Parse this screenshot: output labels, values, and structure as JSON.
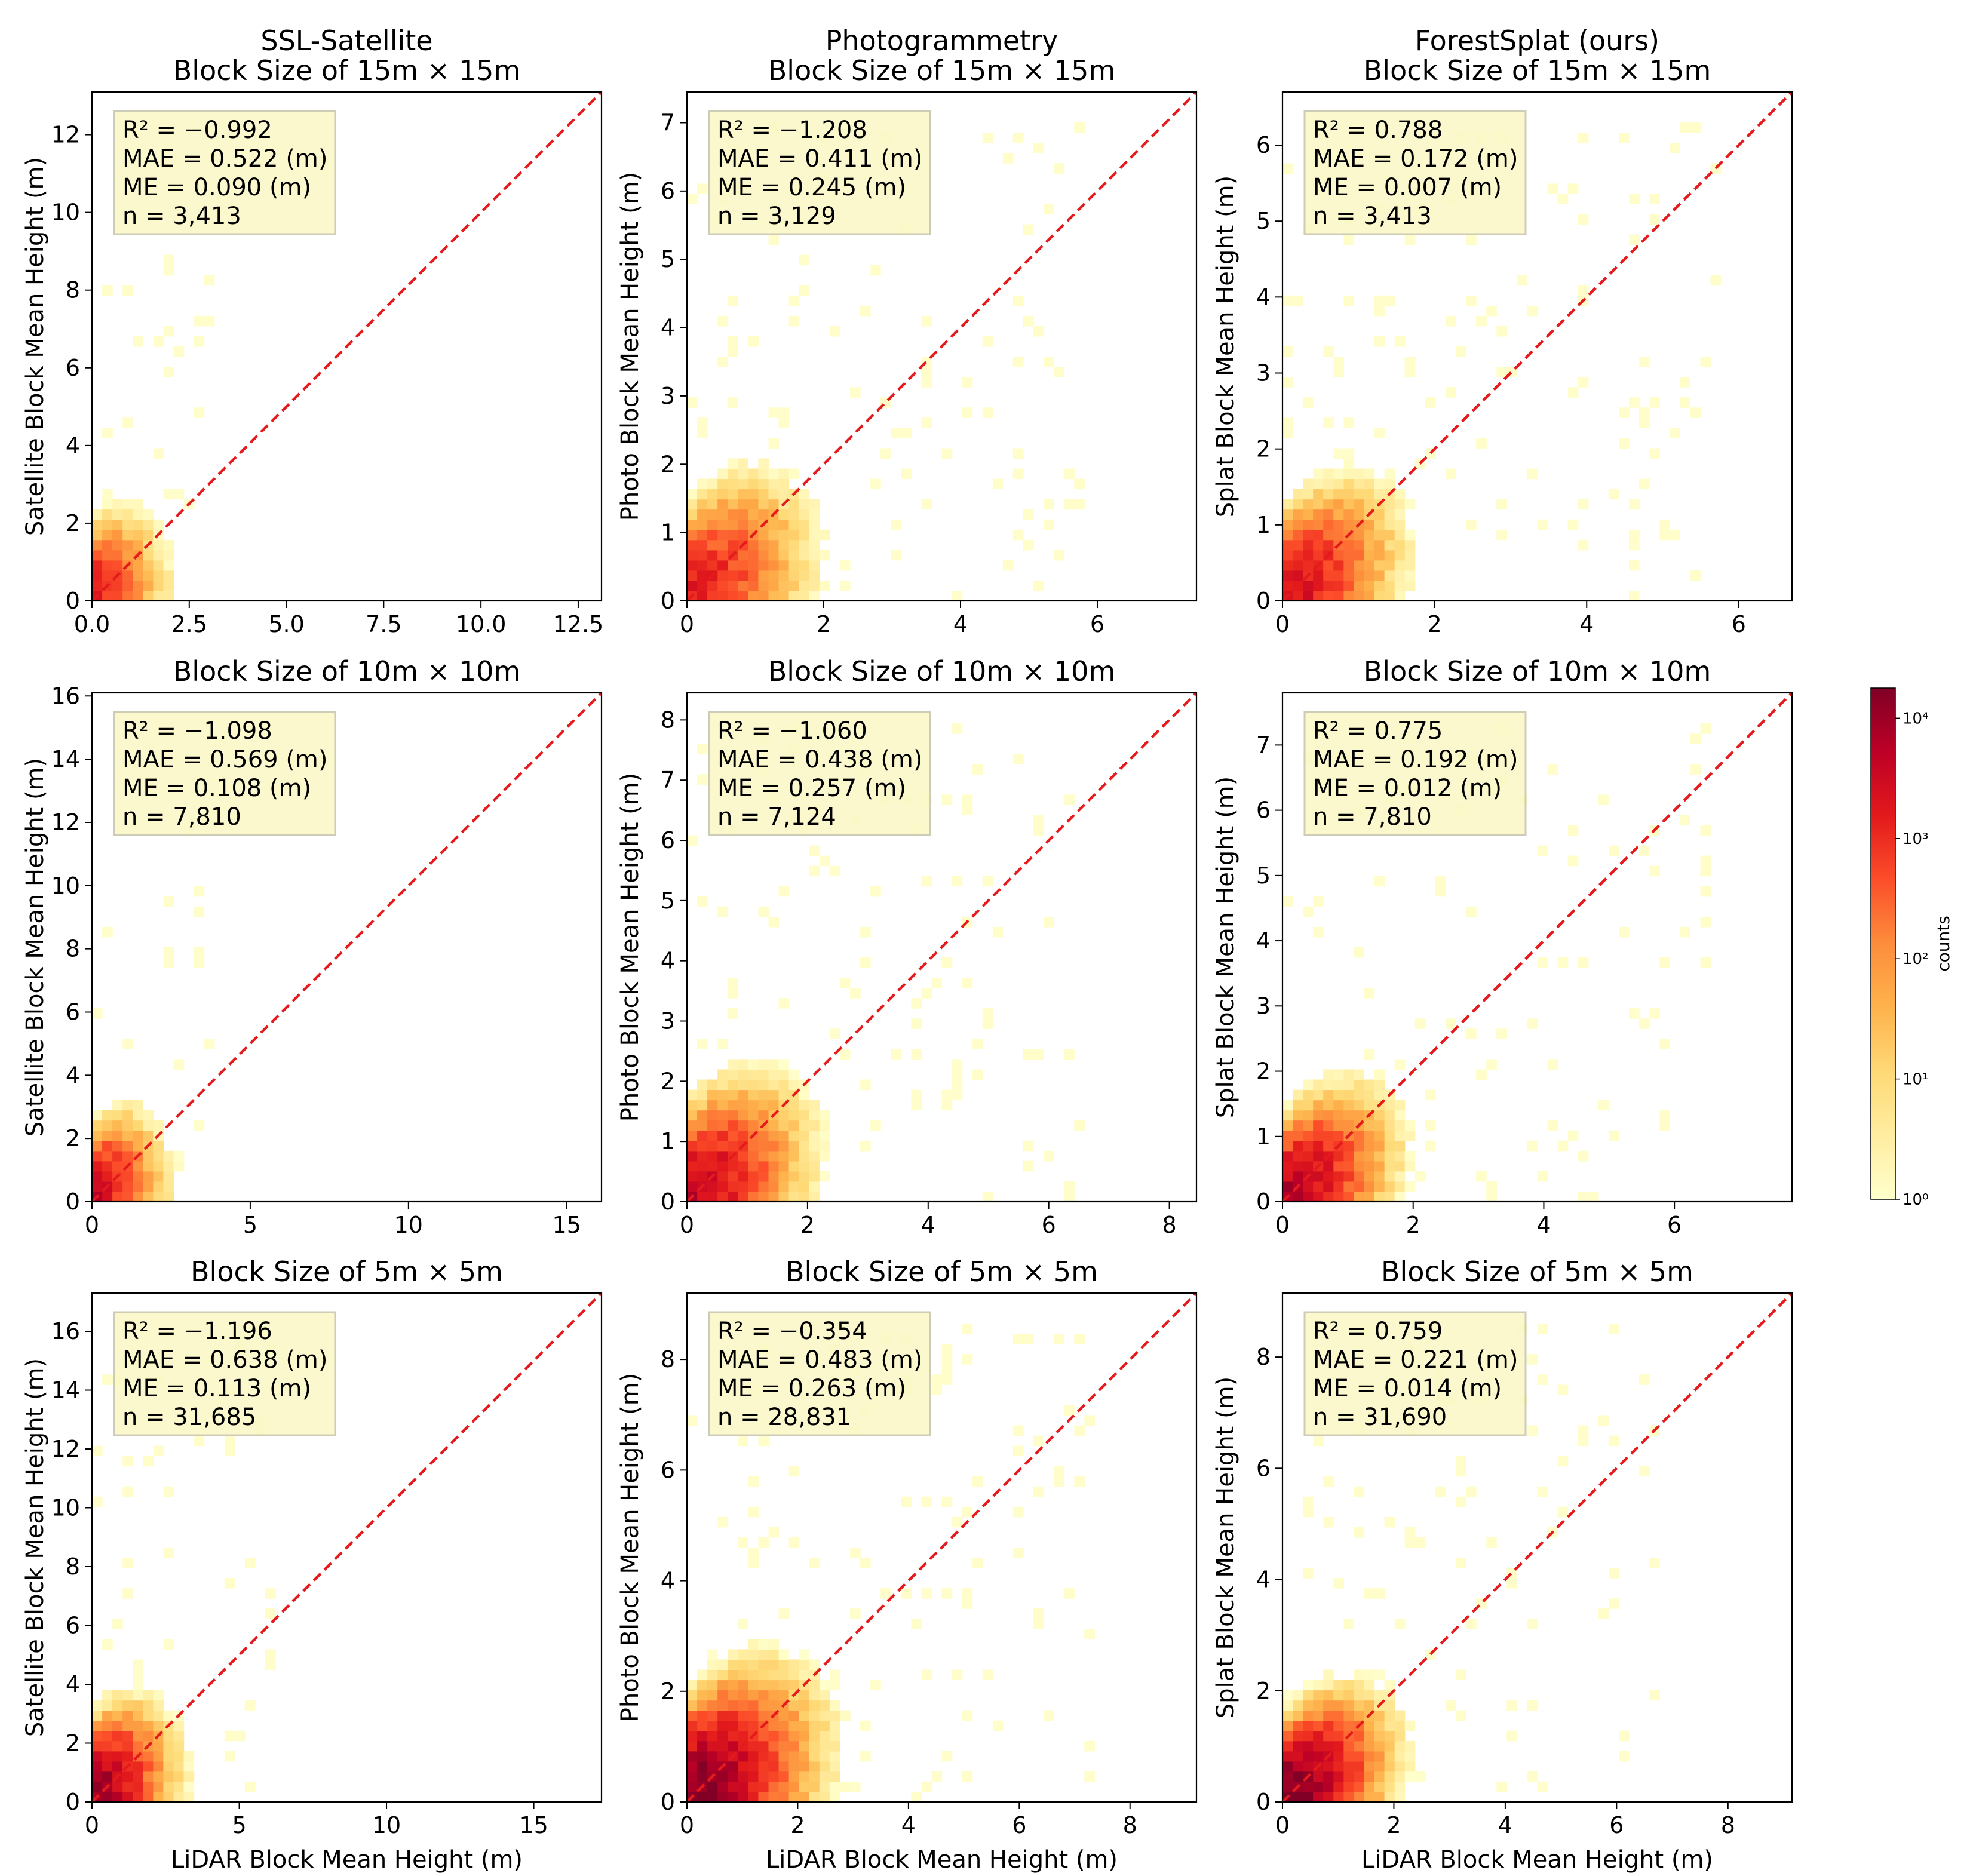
{
  "figure": {
    "colorbar": {
      "label": "counts",
      "ticks": [
        "10⁰",
        "10¹",
        "10²",
        "10³",
        "10⁴"
      ],
      "scale": "log",
      "colors": [
        "#ffffcc",
        "#ffeda0",
        "#fed976",
        "#feb24c",
        "#fd8d3c",
        "#fc4e2a",
        "#e31a1c",
        "#bd0026",
        "#800026"
      ]
    },
    "diagonal_color": "#e41a1c",
    "stats_box_color": "#fbf8c8"
  },
  "chart_data": [
    {
      "type": "heatmap",
      "method": "SSL-Satellite",
      "title": "SSL-Satellite\nBlock Size of 15m × 15m",
      "ylabel": "Satellite Block Mean Height (m)",
      "xlabel": "",
      "xlim": [
        0,
        13.1
      ],
      "ylim": [
        0,
        13.1
      ],
      "xticks": [
        0,
        2.5,
        5,
        7.5,
        10,
        12.5
      ],
      "xtick_labels": [
        "0.0",
        "2.5",
        "5.0",
        "7.5",
        "10.0",
        "12.5"
      ],
      "yticks": [
        0,
        2,
        4,
        6,
        8,
        10,
        12
      ],
      "ytick_labels": [
        "0",
        "2",
        "4",
        "6",
        "8",
        "10",
        "12"
      ],
      "stats": [
        "R² = −0.992",
        "MAE = 0.522 (m)",
        "ME = 0.090 (m)",
        "n = 3,413"
      ],
      "density": {
        "x_center": 1.0,
        "y_center": 1.5,
        "x_spread": 0.8,
        "y_spread": 2.2,
        "x_max": 3.4,
        "y_max": 9.5,
        "slope": 1.6,
        "peak_log_count": 3.3
      }
    },
    {
      "type": "heatmap",
      "method": "Photogrammetry",
      "title": "Photogrammetry\nBlock Size of 15m × 15m",
      "ylabel": "Photo Block Mean Height (m)",
      "xlabel": "",
      "xlim": [
        0,
        7.45
      ],
      "ylim": [
        0,
        7.45
      ],
      "xticks": [
        0,
        2,
        4,
        6
      ],
      "xtick_labels": [
        "0",
        "2",
        "4",
        "6"
      ],
      "yticks": [
        0,
        1,
        2,
        3,
        4,
        5,
        6,
        7
      ],
      "ytick_labels": [
        "0",
        "1",
        "2",
        "3",
        "4",
        "5",
        "6",
        "7"
      ],
      "stats": [
        "R² = −1.208",
        "MAE = 0.411 (m)",
        "ME = 0.245 (m)",
        "n = 3,129"
      ],
      "density": {
        "x_center": 1.3,
        "y_center": 1.6,
        "x_spread": 1.2,
        "y_spread": 1.4,
        "x_max": 6.5,
        "y_max": 7.4,
        "slope": 1.0,
        "peak_log_count": 3.3
      }
    },
    {
      "type": "heatmap",
      "method": "ForestSplat (ours)",
      "title": "ForestSplat (ours)\nBlock Size of 15m × 15m",
      "ylabel": "Splat Block Mean Height (m)",
      "xlabel": "",
      "xlim": [
        0,
        6.7
      ],
      "ylim": [
        0,
        6.7
      ],
      "xticks": [
        0,
        2,
        4,
        6
      ],
      "xtick_labels": [
        "0",
        "2",
        "4",
        "6"
      ],
      "yticks": [
        0,
        1,
        2,
        3,
        4,
        5,
        6
      ],
      "ytick_labels": [
        "0",
        "1",
        "2",
        "3",
        "4",
        "5",
        "6"
      ],
      "stats": [
        "R² = 0.788",
        "MAE = 0.172 (m)",
        "ME = 0.007 (m)",
        "n = 3,413"
      ],
      "density": {
        "x_center": 1.1,
        "y_center": 1.1,
        "x_spread": 1.1,
        "y_spread": 1.1,
        "x_max": 6.4,
        "y_max": 6.6,
        "slope": 1.0,
        "peak_log_count": 3.5
      }
    },
    {
      "type": "heatmap",
      "method": "SSL-Satellite",
      "title": "Block Size of 10m × 10m",
      "ylabel": "Satellite Block Mean Height (m)",
      "xlabel": "",
      "xlim": [
        0,
        16.1
      ],
      "ylim": [
        0,
        16.1
      ],
      "xticks": [
        0,
        5,
        10,
        15
      ],
      "xtick_labels": [
        "0",
        "5",
        "10",
        "15"
      ],
      "yticks": [
        0,
        2,
        4,
        6,
        8,
        10,
        12,
        14,
        16
      ],
      "ytick_labels": [
        "0",
        "2",
        "4",
        "6",
        "8",
        "10",
        "12",
        "14",
        "16"
      ],
      "stats": [
        "R² = −1.098",
        "MAE = 0.569 (m)",
        "ME = 0.108 (m)",
        "n = 7,810"
      ],
      "density": {
        "x_center": 1.1,
        "y_center": 1.6,
        "x_spread": 1.0,
        "y_spread": 2.6,
        "x_max": 4.3,
        "y_max": 12.5,
        "slope": 1.6,
        "peak_log_count": 3.6
      }
    },
    {
      "type": "heatmap",
      "method": "Photogrammetry",
      "title": "Block Size of 10m × 10m",
      "ylabel": "Photo Block Mean Height (m)",
      "xlabel": "",
      "xlim": [
        0,
        8.45
      ],
      "ylim": [
        0,
        8.45
      ],
      "xticks": [
        0,
        2,
        4,
        6,
        8
      ],
      "xtick_labels": [
        "0",
        "2",
        "4",
        "6",
        "8"
      ],
      "stats": [
        "R² = −1.060",
        "MAE = 0.438 (m)",
        "ME = 0.257 (m)",
        "n = 7,124"
      ],
      "yticks": [
        0,
        1,
        2,
        3,
        4,
        5,
        6,
        7,
        8
      ],
      "ytick_labels": [
        "0",
        "1",
        "2",
        "3",
        "4",
        "5",
        "6",
        "7",
        "8"
      ],
      "density": {
        "x_center": 1.4,
        "y_center": 1.7,
        "x_spread": 1.3,
        "y_spread": 1.5,
        "x_max": 7.4,
        "y_max": 8.4,
        "slope": 1.0,
        "peak_log_count": 3.7
      }
    },
    {
      "type": "heatmap",
      "method": "ForestSplat (ours)",
      "title": "Block Size of 10m × 10m",
      "ylabel": "Splat Block Mean Height (m)",
      "xlabel": "",
      "xlim": [
        0,
        7.8
      ],
      "ylim": [
        0,
        7.8
      ],
      "xticks": [
        0,
        2,
        4,
        6
      ],
      "xtick_labels": [
        "0",
        "2",
        "4",
        "6"
      ],
      "yticks": [
        0,
        1,
        2,
        3,
        4,
        5,
        6,
        7
      ],
      "ytick_labels": [
        "0",
        "1",
        "2",
        "3",
        "4",
        "5",
        "6",
        "7"
      ],
      "stats": [
        "R² = 0.775",
        "MAE = 0.192 (m)",
        "ME = 0.012 (m)",
        "n = 7,810"
      ],
      "density": {
        "x_center": 1.2,
        "y_center": 1.2,
        "x_spread": 1.2,
        "y_spread": 1.2,
        "x_max": 7.3,
        "y_max": 7.7,
        "slope": 1.0,
        "peak_log_count": 3.8
      }
    },
    {
      "type": "heatmap",
      "method": "SSL-Satellite",
      "title": "Block Size of 5m × 5m",
      "ylabel": "Satellite Block Mean Height (m)",
      "xlabel": "LiDAR Block Mean Height (m)",
      "xlim": [
        0,
        17.3
      ],
      "ylim": [
        0,
        17.3
      ],
      "xticks": [
        0,
        5,
        10,
        15
      ],
      "xtick_labels": [
        "0",
        "5",
        "10",
        "15"
      ],
      "yticks": [
        0,
        2,
        4,
        6,
        8,
        10,
        12,
        14,
        16
      ],
      "ytick_labels": [
        "0",
        "2",
        "4",
        "6",
        "8",
        "10",
        "12",
        "14",
        "16"
      ],
      "stats": [
        "R² = −1.196",
        "MAE = 0.638 (m)",
        "ME = 0.113 (m)",
        "n = 31,685"
      ],
      "density": {
        "x_center": 1.3,
        "y_center": 1.9,
        "x_spread": 1.3,
        "y_spread": 2.8,
        "x_max": 7.0,
        "y_max": 17.0,
        "slope": 1.5,
        "peak_log_count": 4.1
      }
    },
    {
      "type": "heatmap",
      "method": "Photogrammetry",
      "title": "Block Size of 5m × 5m",
      "ylabel": "Photo Block Mean Height (m)",
      "xlabel": "LiDAR Block Mean Height (m)",
      "xlim": [
        0,
        9.2
      ],
      "ylim": [
        0,
        9.2
      ],
      "xticks": [
        0,
        2,
        4,
        6,
        8
      ],
      "xtick_labels": [
        "0",
        "2",
        "4",
        "6",
        "8"
      ],
      "yticks": [
        0,
        2,
        4,
        6,
        8
      ],
      "ytick_labels": [
        "0",
        "2",
        "4",
        "6",
        "8"
      ],
      "stats": [
        "R² = −0.354",
        "MAE = 0.483 (m)",
        "ME = 0.263 (m)",
        "n = 28,831"
      ],
      "density": {
        "x_center": 1.5,
        "y_center": 1.8,
        "x_spread": 1.5,
        "y_spread": 1.7,
        "x_max": 8.1,
        "y_max": 9.2,
        "slope": 1.0,
        "peak_log_count": 4.2
      }
    },
    {
      "type": "heatmap",
      "method": "ForestSplat (ours)",
      "title": "Block Size of 5m × 5m",
      "ylabel": "Splat Block Mean Height (m)",
      "xlabel": "LiDAR Block Mean Height (m)",
      "xlim": [
        0,
        9.15
      ],
      "ylim": [
        0,
        9.15
      ],
      "xticks": [
        0,
        2,
        4,
        6,
        8
      ],
      "xtick_labels": [
        "0",
        "2",
        "4",
        "6",
        "8"
      ],
      "yticks": [
        0,
        2,
        4,
        6,
        8
      ],
      "ytick_labels": [
        "0",
        "2",
        "4",
        "6",
        "8"
      ],
      "stats": [
        "R² = 0.759",
        "MAE = 0.221 (m)",
        "ME = 0.014 (m)",
        "n = 31,690"
      ],
      "density": {
        "x_center": 1.3,
        "y_center": 1.3,
        "x_spread": 1.3,
        "y_spread": 1.3,
        "x_max": 7.6,
        "y_max": 9.1,
        "slope": 1.0,
        "peak_log_count": 4.3
      }
    }
  ]
}
